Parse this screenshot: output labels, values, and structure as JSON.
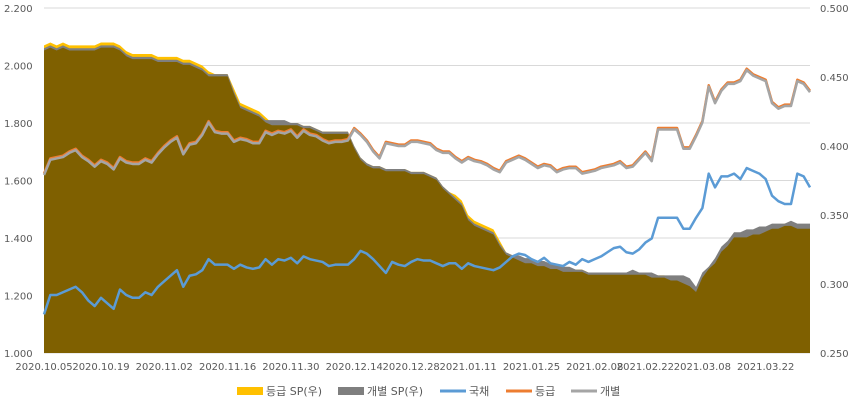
{
  "chart_data": {
    "type": "area",
    "x": [
      "2020.10.05",
      "2020.10.06",
      "2020.10.07",
      "2020.10.08",
      "2020.10.12",
      "2020.10.13",
      "2020.10.14",
      "2020.10.15",
      "2020.10.16",
      "2020.10.19",
      "2020.10.20",
      "2020.10.21",
      "2020.10.22",
      "2020.10.23",
      "2020.10.26",
      "2020.10.27",
      "2020.10.28",
      "2020.10.29",
      "2020.10.30",
      "2020.11.02",
      "2020.11.03",
      "2020.11.04",
      "2020.11.05",
      "2020.11.06",
      "2020.11.09",
      "2020.11.10",
      "2020.11.11",
      "2020.11.12",
      "2020.11.13",
      "2020.11.16",
      "2020.11.17",
      "2020.11.18",
      "2020.11.19",
      "2020.11.20",
      "2020.11.23",
      "2020.11.24",
      "2020.11.25",
      "2020.11.26",
      "2020.11.27",
      "2020.11.30",
      "2020.12.01",
      "2020.12.02",
      "2020.12.03",
      "2020.12.04",
      "2020.12.07",
      "2020.12.08",
      "2020.12.09",
      "2020.12.10",
      "2020.12.11",
      "2020.12.14",
      "2020.12.15",
      "2020.12.16",
      "2020.12.17",
      "2020.12.18",
      "2020.12.21",
      "2020.12.22",
      "2020.12.23",
      "2020.12.24",
      "2020.12.28",
      "2020.12.29",
      "2020.12.30",
      "2020.12.31",
      "2021.01.04",
      "2021.01.05",
      "2021.01.06",
      "2021.01.07",
      "2021.01.08",
      "2021.01.11",
      "2021.01.12",
      "2021.01.13",
      "2021.01.14",
      "2021.01.15",
      "2021.01.18",
      "2021.01.19",
      "2021.01.20",
      "2021.01.21",
      "2021.01.22",
      "2021.01.25",
      "2021.01.26",
      "2021.01.27",
      "2021.01.28",
      "2021.01.29",
      "2021.02.01",
      "2021.02.02",
      "2021.02.03",
      "2021.02.04",
      "2021.02.05",
      "2021.02.08",
      "2021.02.09",
      "2021.02.10",
      "2021.02.15",
      "2021.02.16",
      "2021.02.17",
      "2021.02.18",
      "2021.02.19",
      "2021.02.22",
      "2021.02.23",
      "2021.02.24",
      "2021.02.25",
      "2021.02.26",
      "2021.03.02",
      "2021.03.03",
      "2021.03.04",
      "2021.03.05",
      "2021.03.08",
      "2021.03.09",
      "2021.03.10",
      "2021.03.11",
      "2021.03.12",
      "2021.03.15",
      "2021.03.16",
      "2021.03.17",
      "2021.03.18",
      "2021.03.19",
      "2021.03.22",
      "2021.03.23",
      "2021.03.24",
      "2021.03.25",
      "2021.03.26",
      "2021.03.29",
      "2021.03.30",
      "2021.03.31"
    ],
    "x_ticks": [
      "2020.10.05",
      "2020.10.19",
      "2020.11.02",
      "2020.11.16",
      "2020.11.30",
      "2020.12.14",
      "2020.12.28",
      "2021.01.11",
      "2021.01.25",
      "2021.02.08",
      "2021.02.22",
      "2021.03.08",
      "2021.03.22"
    ],
    "y_left": {
      "min": 1.0,
      "max": 2.2,
      "ticks": [
        "1.000",
        "1.200",
        "1.400",
        "1.600",
        "1.800",
        "2.000",
        "2.200"
      ]
    },
    "y_right": {
      "min": 0.25,
      "max": 0.5,
      "ticks": [
        "0.250",
        "0.300",
        "0.350",
        "0.400",
        "0.450",
        "0.500"
      ]
    },
    "grid": true,
    "legend_position": "bottom",
    "series": [
      {
        "name": "등급 SP(우)",
        "kind": "area",
        "axis": "left",
        "color": "#FFC000",
        "values": [
          2.07,
          2.08,
          2.07,
          2.08,
          2.07,
          2.07,
          2.07,
          2.07,
          2.07,
          2.08,
          2.08,
          2.08,
          2.07,
          2.05,
          2.04,
          2.04,
          2.04,
          2.04,
          2.03,
          2.03,
          2.03,
          2.03,
          2.02,
          2.02,
          2.01,
          2.0,
          1.98,
          1.97,
          1.97,
          1.97,
          1.92,
          1.87,
          1.86,
          1.85,
          1.84,
          1.82,
          1.8,
          1.8,
          1.8,
          1.8,
          1.8,
          1.79,
          1.79,
          1.78,
          1.77,
          1.77,
          1.77,
          1.77,
          1.77,
          1.72,
          1.68,
          1.66,
          1.65,
          1.65,
          1.64,
          1.64,
          1.64,
          1.64,
          1.63,
          1.63,
          1.63,
          1.62,
          1.61,
          1.58,
          1.56,
          1.55,
          1.53,
          1.48,
          1.46,
          1.45,
          1.44,
          1.43,
          1.39,
          1.35,
          1.34,
          1.33,
          1.32,
          1.32,
          1.31,
          1.31,
          1.3,
          1.3,
          1.29,
          1.29,
          1.29,
          1.29,
          1.28,
          1.28,
          1.28,
          1.28,
          1.28,
          1.28,
          1.28,
          1.28,
          1.28,
          1.28,
          1.27,
          1.27,
          1.27,
          1.26,
          1.26,
          1.25,
          1.24,
          1.22,
          1.27,
          1.3,
          1.32,
          1.36,
          1.38,
          1.41,
          1.41,
          1.41,
          1.42,
          1.42,
          1.43,
          1.44,
          1.44,
          1.45,
          1.45,
          1.44,
          1.44,
          1.44
        ]
      },
      {
        "name": "개별 SP(우)",
        "kind": "area",
        "axis": "left",
        "color": "#7F7F7F",
        "values": [
          2.06,
          2.07,
          2.06,
          2.07,
          2.06,
          2.06,
          2.06,
          2.06,
          2.06,
          2.07,
          2.07,
          2.07,
          2.06,
          2.04,
          2.03,
          2.03,
          2.03,
          2.03,
          2.02,
          2.02,
          2.02,
          2.02,
          2.01,
          2.01,
          2.0,
          1.99,
          1.97,
          1.97,
          1.97,
          1.97,
          1.91,
          1.86,
          1.85,
          1.84,
          1.83,
          1.81,
          1.81,
          1.81,
          1.81,
          1.8,
          1.8,
          1.79,
          1.79,
          1.78,
          1.77,
          1.77,
          1.77,
          1.77,
          1.77,
          1.72,
          1.68,
          1.66,
          1.65,
          1.65,
          1.64,
          1.64,
          1.64,
          1.64,
          1.63,
          1.63,
          1.63,
          1.62,
          1.61,
          1.58,
          1.56,
          1.54,
          1.52,
          1.47,
          1.45,
          1.44,
          1.43,
          1.42,
          1.38,
          1.35,
          1.34,
          1.34,
          1.33,
          1.33,
          1.32,
          1.32,
          1.31,
          1.31,
          1.3,
          1.3,
          1.29,
          1.29,
          1.28,
          1.28,
          1.28,
          1.28,
          1.28,
          1.28,
          1.28,
          1.29,
          1.28,
          1.28,
          1.28,
          1.27,
          1.27,
          1.27,
          1.27,
          1.27,
          1.26,
          1.23,
          1.28,
          1.3,
          1.33,
          1.37,
          1.39,
          1.42,
          1.42,
          1.43,
          1.43,
          1.44,
          1.44,
          1.45,
          1.45,
          1.45,
          1.46,
          1.45,
          1.45,
          1.45
        ]
      },
      {
        "name": "국채",
        "kind": "line",
        "axis": "right",
        "color": "#5B9BD5",
        "values": [
          0.278,
          0.292,
          0.292,
          0.294,
          0.296,
          0.298,
          0.294,
          0.288,
          0.284,
          0.29,
          0.286,
          0.282,
          0.296,
          0.292,
          0.29,
          0.29,
          0.294,
          0.292,
          0.298,
          0.302,
          0.306,
          0.31,
          0.298,
          0.306,
          0.307,
          0.31,
          0.318,
          0.314,
          0.314,
          0.314,
          0.311,
          0.314,
          0.312,
          0.311,
          0.312,
          0.318,
          0.314,
          0.318,
          0.317,
          0.319,
          0.315,
          0.32,
          0.318,
          0.317,
          0.316,
          0.313,
          0.314,
          0.314,
          0.314,
          0.318,
          0.324,
          0.322,
          0.318,
          0.313,
          0.308,
          0.316,
          0.314,
          0.313,
          0.316,
          0.318,
          0.317,
          0.317,
          0.315,
          0.313,
          0.315,
          0.315,
          0.311,
          0.315,
          0.313,
          0.312,
          0.311,
          0.31,
          0.312,
          0.316,
          0.32,
          0.322,
          0.321,
          0.318,
          0.316,
          0.319,
          0.315,
          0.314,
          0.313,
          0.316,
          0.314,
          0.318,
          0.316,
          0.318,
          0.32,
          0.323,
          0.326,
          0.327,
          0.323,
          0.322,
          0.325,
          0.33,
          0.333,
          0.348,
          0.348,
          0.348,
          0.348,
          0.34,
          0.34,
          0.348,
          0.355,
          0.38,
          0.37,
          0.378,
          0.378,
          0.38,
          0.376,
          0.384,
          0.382,
          0.38,
          0.376,
          0.364,
          0.36,
          0.358,
          0.358,
          0.38,
          0.378,
          0.37
        ]
      },
      {
        "name": "등급",
        "kind": "line",
        "axis": "right",
        "color": "#ED7D31",
        "values": [
          0.38,
          0.391,
          0.392,
          0.393,
          0.396,
          0.398,
          0.393,
          0.39,
          0.386,
          0.39,
          0.388,
          0.384,
          0.392,
          0.389,
          0.388,
          0.388,
          0.391,
          0.389,
          0.395,
          0.4,
          0.404,
          0.407,
          0.395,
          0.402,
          0.403,
          0.409,
          0.418,
          0.411,
          0.41,
          0.41,
          0.404,
          0.406,
          0.405,
          0.403,
          0.403,
          0.411,
          0.409,
          0.411,
          0.41,
          0.412,
          0.407,
          0.412,
          0.409,
          0.408,
          0.405,
          0.403,
          0.404,
          0.404,
          0.405,
          0.413,
          0.409,
          0.404,
          0.397,
          0.392,
          0.403,
          0.402,
          0.401,
          0.401,
          0.404,
          0.404,
          0.403,
          0.402,
          0.398,
          0.396,
          0.396,
          0.392,
          0.389,
          0.392,
          0.39,
          0.389,
          0.387,
          0.384,
          0.382,
          0.389,
          0.391,
          0.393,
          0.391,
          0.388,
          0.385,
          0.387,
          0.386,
          0.382,
          0.384,
          0.385,
          0.385,
          0.381,
          0.382,
          0.383,
          0.385,
          0.386,
          0.387,
          0.389,
          0.385,
          0.386,
          0.391,
          0.396,
          0.39,
          0.413,
          0.413,
          0.413,
          0.413,
          0.399,
          0.399,
          0.408,
          0.418,
          0.444,
          0.432,
          0.441,
          0.446,
          0.446,
          0.448,
          0.456,
          0.452,
          0.45,
          0.448,
          0.432,
          0.428,
          0.43,
          0.43,
          0.448,
          0.446,
          0.44
        ]
      },
      {
        "name": "개별",
        "kind": "line",
        "axis": "right",
        "color": "#A5A5A5",
        "values": [
          0.379,
          0.39,
          0.391,
          0.392,
          0.395,
          0.397,
          0.392,
          0.389,
          0.385,
          0.389,
          0.387,
          0.383,
          0.391,
          0.388,
          0.387,
          0.387,
          0.39,
          0.388,
          0.394,
          0.399,
          0.403,
          0.406,
          0.394,
          0.401,
          0.402,
          0.408,
          0.417,
          0.41,
          0.409,
          0.409,
          0.403,
          0.405,
          0.404,
          0.402,
          0.402,
          0.41,
          0.408,
          0.41,
          0.409,
          0.411,
          0.406,
          0.411,
          0.408,
          0.407,
          0.404,
          0.402,
          0.403,
          0.403,
          0.404,
          0.412,
          0.408,
          0.403,
          0.396,
          0.391,
          0.402,
          0.401,
          0.4,
          0.4,
          0.403,
          0.403,
          0.402,
          0.401,
          0.397,
          0.395,
          0.395,
          0.391,
          0.388,
          0.391,
          0.389,
          0.388,
          0.386,
          0.383,
          0.381,
          0.388,
          0.39,
          0.392,
          0.39,
          0.387,
          0.384,
          0.386,
          0.385,
          0.381,
          0.383,
          0.384,
          0.384,
          0.38,
          0.381,
          0.382,
          0.384,
          0.385,
          0.386,
          0.388,
          0.384,
          0.385,
          0.39,
          0.395,
          0.389,
          0.412,
          0.412,
          0.412,
          0.412,
          0.398,
          0.398,
          0.407,
          0.417,
          0.443,
          0.431,
          0.44,
          0.445,
          0.445,
          0.447,
          0.455,
          0.451,
          0.449,
          0.447,
          0.431,
          0.427,
          0.429,
          0.429,
          0.447,
          0.445,
          0.439
        ]
      }
    ]
  },
  "colors": {
    "area_fill": "#7F6000",
    "grid": "#D9D9D9",
    "axis_text": "#595959"
  },
  "legend": [
    {
      "label": "등급 SP(우)",
      "kind": "box",
      "color": "#FFC000"
    },
    {
      "label": "개별 SP(우)",
      "kind": "box",
      "color": "#7F7F7F"
    },
    {
      "label": "국채",
      "kind": "line",
      "color": "#5B9BD5"
    },
    {
      "label": "등급",
      "kind": "line",
      "color": "#ED7D31"
    },
    {
      "label": "개별",
      "kind": "line",
      "color": "#A5A5A5"
    }
  ]
}
